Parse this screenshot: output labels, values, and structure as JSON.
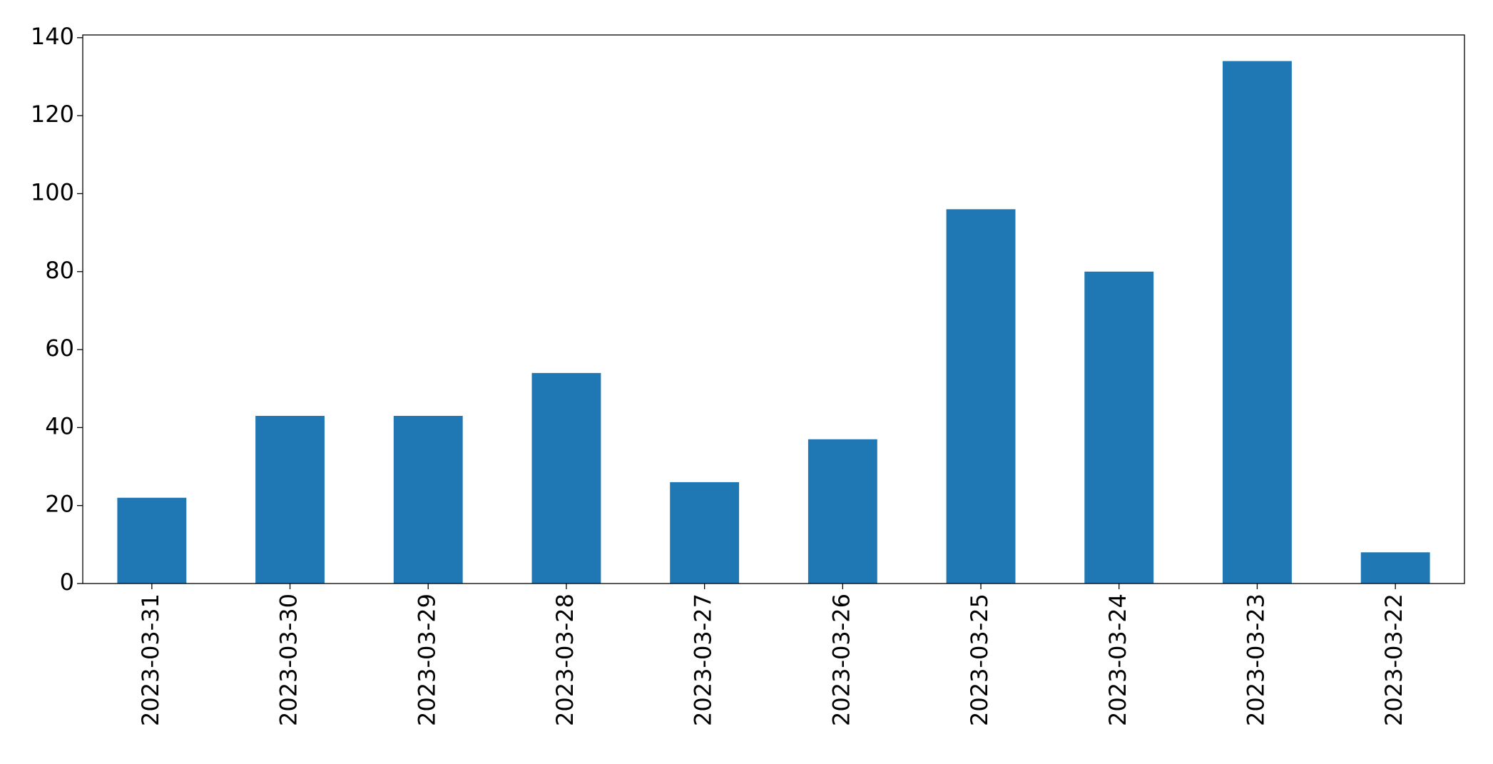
{
  "chart_data": {
    "type": "bar",
    "categories": [
      "2023-03-31",
      "2023-03-30",
      "2023-03-29",
      "2023-03-28",
      "2023-03-27",
      "2023-03-26",
      "2023-03-25",
      "2023-03-24",
      "2023-03-23",
      "2023-03-22"
    ],
    "values": [
      22,
      43,
      43,
      54,
      26,
      37,
      96,
      80,
      134,
      8
    ],
    "color": "#1f77b4",
    "ylim": [
      0,
      140.7
    ],
    "yticks": [
      0,
      20,
      40,
      60,
      80,
      100,
      120,
      140
    ],
    "grid": false
  }
}
